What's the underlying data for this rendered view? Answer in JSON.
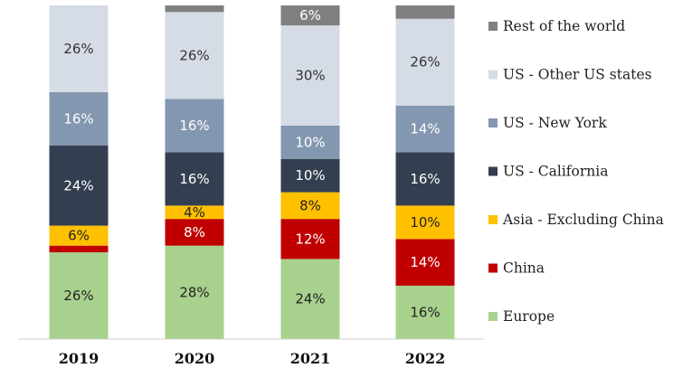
{
  "chart_data": {
    "type": "bar",
    "stacked": true,
    "normalized": true,
    "title": "",
    "xlabel": "",
    "ylabel": "",
    "ylim": [
      0,
      100
    ],
    "grid": false,
    "legend_position": "right",
    "categories": [
      "2019",
      "2020",
      "2021",
      "2022"
    ],
    "series": [
      {
        "name": "Europe",
        "color": "#a9d18e",
        "values": [
          26,
          28,
          24,
          16
        ],
        "labels": [
          "26%",
          "28%",
          "24%",
          "16%"
        ],
        "label_color": "#222222"
      },
      {
        "name": "China",
        "color": "#c00000",
        "values": [
          2,
          8,
          12,
          14
        ],
        "labels": [
          "",
          "8%",
          "12%",
          "14%"
        ],
        "label_color": "#ffffff"
      },
      {
        "name": "Asia - Excluding China",
        "color": "#ffc000",
        "values": [
          6,
          4,
          8,
          10
        ],
        "labels": [
          "6%",
          "4%",
          "8%",
          "10%"
        ],
        "label_color": "#222222"
      },
      {
        "name": "US - California",
        "color": "#333f50",
        "values": [
          24,
          16,
          10,
          16
        ],
        "labels": [
          "24%",
          "16%",
          "10%",
          "16%"
        ],
        "label_color": "#ffffff"
      },
      {
        "name": "US - New York",
        "color": "#8497b0",
        "values": [
          16,
          16,
          10,
          14
        ],
        "labels": [
          "16%",
          "16%",
          "10%",
          "14%"
        ],
        "label_color": "#ffffff"
      },
      {
        "name": "US - Other US states",
        "color": "#d6dce5",
        "values": [
          26,
          26,
          30,
          26
        ],
        "labels": [
          "26%",
          "26%",
          "30%",
          "26%"
        ],
        "label_color": "#333333"
      },
      {
        "name": "Rest of the world",
        "color": "#7f7f7f",
        "values": [
          0,
          2,
          6,
          4
        ],
        "labels": [
          "",
          "",
          "6%",
          ""
        ],
        "label_color": "#ffffff"
      }
    ]
  }
}
